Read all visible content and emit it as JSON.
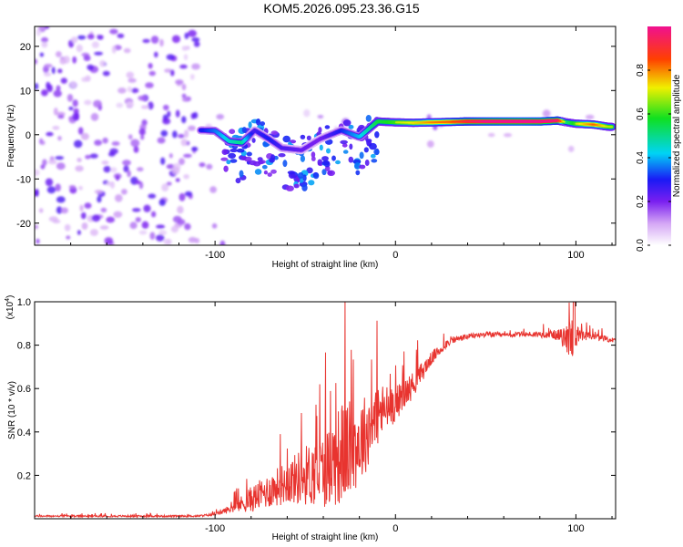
{
  "title": "KOM5.2026.095.23.36.G15",
  "chart_data": [
    {
      "type": "heatmap",
      "name": "spectrogram",
      "xlabel": "Height of straight line (km)",
      "ylabel": "Frequency (Hz)",
      "xlim": [
        -200,
        122
      ],
      "ylim": [
        -25,
        24.5
      ],
      "xticks": [
        -100,
        0,
        100
      ],
      "yticks": [
        -20,
        -10,
        0,
        10,
        20
      ],
      "colorbar": {
        "label": "Normalized spectral amplitude",
        "range": [
          0,
          1
        ],
        "ticks": [
          0.0,
          0.2,
          0.4,
          0.6,
          0.8
        ]
      },
      "ridge": [
        {
          "x": -106,
          "f": 1.0,
          "amp": 0.3
        },
        {
          "x": -100,
          "f": 0.9,
          "amp": 0.35
        },
        {
          "x": -92,
          "f": -1.5,
          "amp": 0.45
        },
        {
          "x": -85,
          "f": -1.8,
          "amp": 0.5
        },
        {
          "x": -78,
          "f": 1.0,
          "amp": 0.25
        },
        {
          "x": -70,
          "f": -1.0,
          "amp": 0.3
        },
        {
          "x": -63,
          "f": -3.0,
          "amp": 0.25
        },
        {
          "x": -52,
          "f": -3.5,
          "amp": 0.22
        },
        {
          "x": -42,
          "f": -1.0,
          "amp": 0.2
        },
        {
          "x": -30,
          "f": 1.0,
          "amp": 0.3
        },
        {
          "x": -20,
          "f": -0.5,
          "amp": 0.4
        },
        {
          "x": -10,
          "f": 3.0,
          "amp": 0.55
        },
        {
          "x": 0,
          "f": 2.8,
          "amp": 0.6
        },
        {
          "x": 10,
          "f": 2.7,
          "amp": 0.65
        },
        {
          "x": 20,
          "f": 2.8,
          "amp": 0.72
        },
        {
          "x": 30,
          "f": 2.9,
          "amp": 0.75
        },
        {
          "x": 40,
          "f": 3.0,
          "amp": 0.85
        },
        {
          "x": 50,
          "f": 3.0,
          "amp": 0.92
        },
        {
          "x": 60,
          "f": 3.0,
          "amp": 0.95
        },
        {
          "x": 70,
          "f": 3.0,
          "amp": 0.97
        },
        {
          "x": 80,
          "f": 3.0,
          "amp": 0.95
        },
        {
          "x": 90,
          "f": 3.2,
          "amp": 0.9
        },
        {
          "x": 95,
          "f": 2.8,
          "amp": 0.5
        },
        {
          "x": 100,
          "f": 2.5,
          "amp": 0.6
        },
        {
          "x": 110,
          "f": 2.3,
          "amp": 0.75
        },
        {
          "x": 118,
          "f": 1.8,
          "amp": 0.6
        }
      ]
    },
    {
      "type": "line",
      "name": "snr",
      "xlabel": "Height of straight line (km)",
      "ylabel": "SNR (10 * v/v)",
      "multiplier": "(x10",
      "multiplier_exp": "4",
      "multiplier_close": ")",
      "xlim": [
        -200,
        122
      ],
      "ylim": [
        0,
        1.0
      ],
      "xticks": [
        -100,
        0,
        100
      ],
      "yticks": [
        0.2,
        0.4,
        0.6,
        0.8,
        1.0
      ],
      "color": "#e8342f",
      "envelope": [
        {
          "x": -200,
          "mean": 0.012,
          "amp": 0.004
        },
        {
          "x": -110,
          "mean": 0.012,
          "amp": 0.004
        },
        {
          "x": -100,
          "mean": 0.02,
          "amp": 0.006
        },
        {
          "x": -90,
          "mean": 0.05,
          "amp": 0.02
        },
        {
          "x": -80,
          "mean": 0.09,
          "amp": 0.06
        },
        {
          "x": -70,
          "mean": 0.13,
          "amp": 0.08
        },
        {
          "x": -60,
          "mean": 0.17,
          "amp": 0.1
        },
        {
          "x": -50,
          "mean": 0.2,
          "amp": 0.14
        },
        {
          "x": -40,
          "mean": 0.22,
          "amp": 0.17
        },
        {
          "x": -30,
          "mean": 0.3,
          "amp": 0.24
        },
        {
          "x": -20,
          "mean": 0.35,
          "amp": 0.2
        },
        {
          "x": -10,
          "mean": 0.48,
          "amp": 0.15
        },
        {
          "x": 0,
          "mean": 0.53,
          "amp": 0.08
        },
        {
          "x": 10,
          "mean": 0.62,
          "amp": 0.06
        },
        {
          "x": 20,
          "mean": 0.74,
          "amp": 0.03
        },
        {
          "x": 30,
          "mean": 0.82,
          "amp": 0.02
        },
        {
          "x": 40,
          "mean": 0.84,
          "amp": 0.012
        },
        {
          "x": 50,
          "mean": 0.85,
          "amp": 0.012
        },
        {
          "x": 60,
          "mean": 0.845,
          "amp": 0.012
        },
        {
          "x": 70,
          "mean": 0.85,
          "amp": 0.012
        },
        {
          "x": 80,
          "mean": 0.85,
          "amp": 0.015
        },
        {
          "x": 88,
          "mean": 0.85,
          "amp": 0.02
        },
        {
          "x": 94,
          "mean": 0.83,
          "amp": 0.05
        },
        {
          "x": 98,
          "mean": 0.84,
          "amp": 0.12
        },
        {
          "x": 102,
          "mean": 0.84,
          "amp": 0.03
        },
        {
          "x": 110,
          "mean": 0.84,
          "amp": 0.015
        },
        {
          "x": 122,
          "mean": 0.82,
          "amp": 0.012
        }
      ]
    }
  ]
}
